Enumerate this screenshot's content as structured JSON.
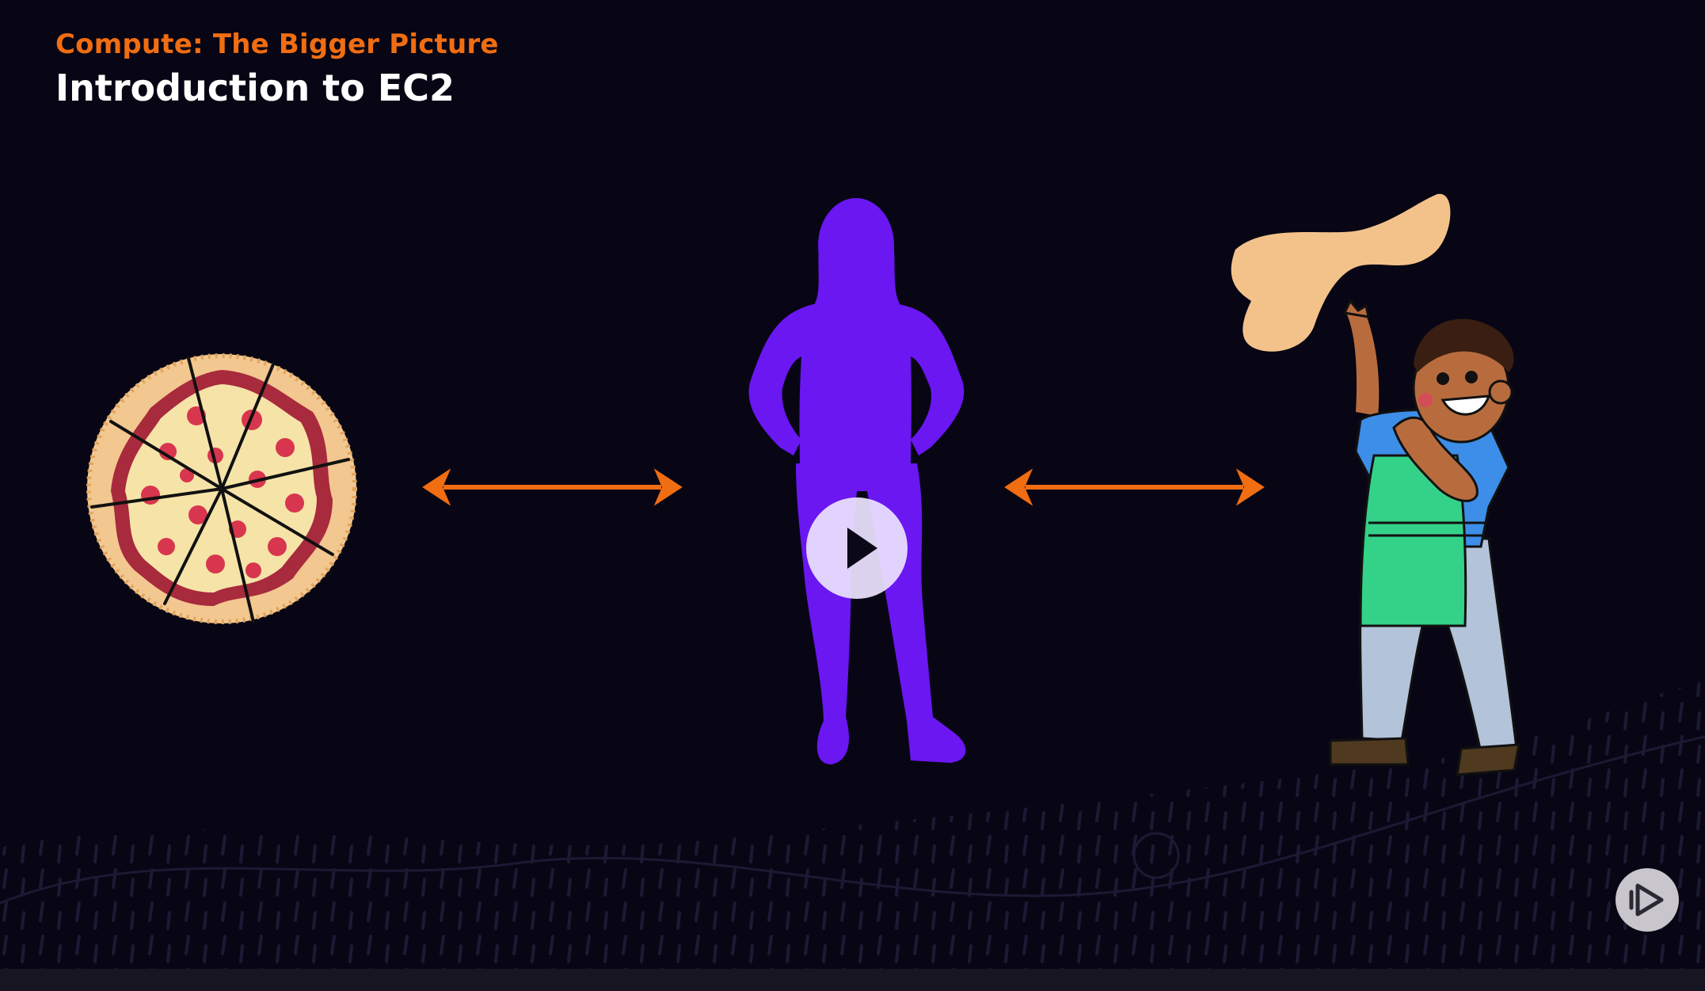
{
  "video": {
    "course_title": "Compute: The Bigger Picture",
    "clip_title": "Introduction to EC2"
  },
  "colors": {
    "accent_orange": "#f06d12",
    "silhouette_purple": "#6a17f2",
    "background": "#080614",
    "play_button": "#ece2ff"
  },
  "icons": {
    "play": "play-icon",
    "brand": "pluralsight-logo-icon"
  }
}
